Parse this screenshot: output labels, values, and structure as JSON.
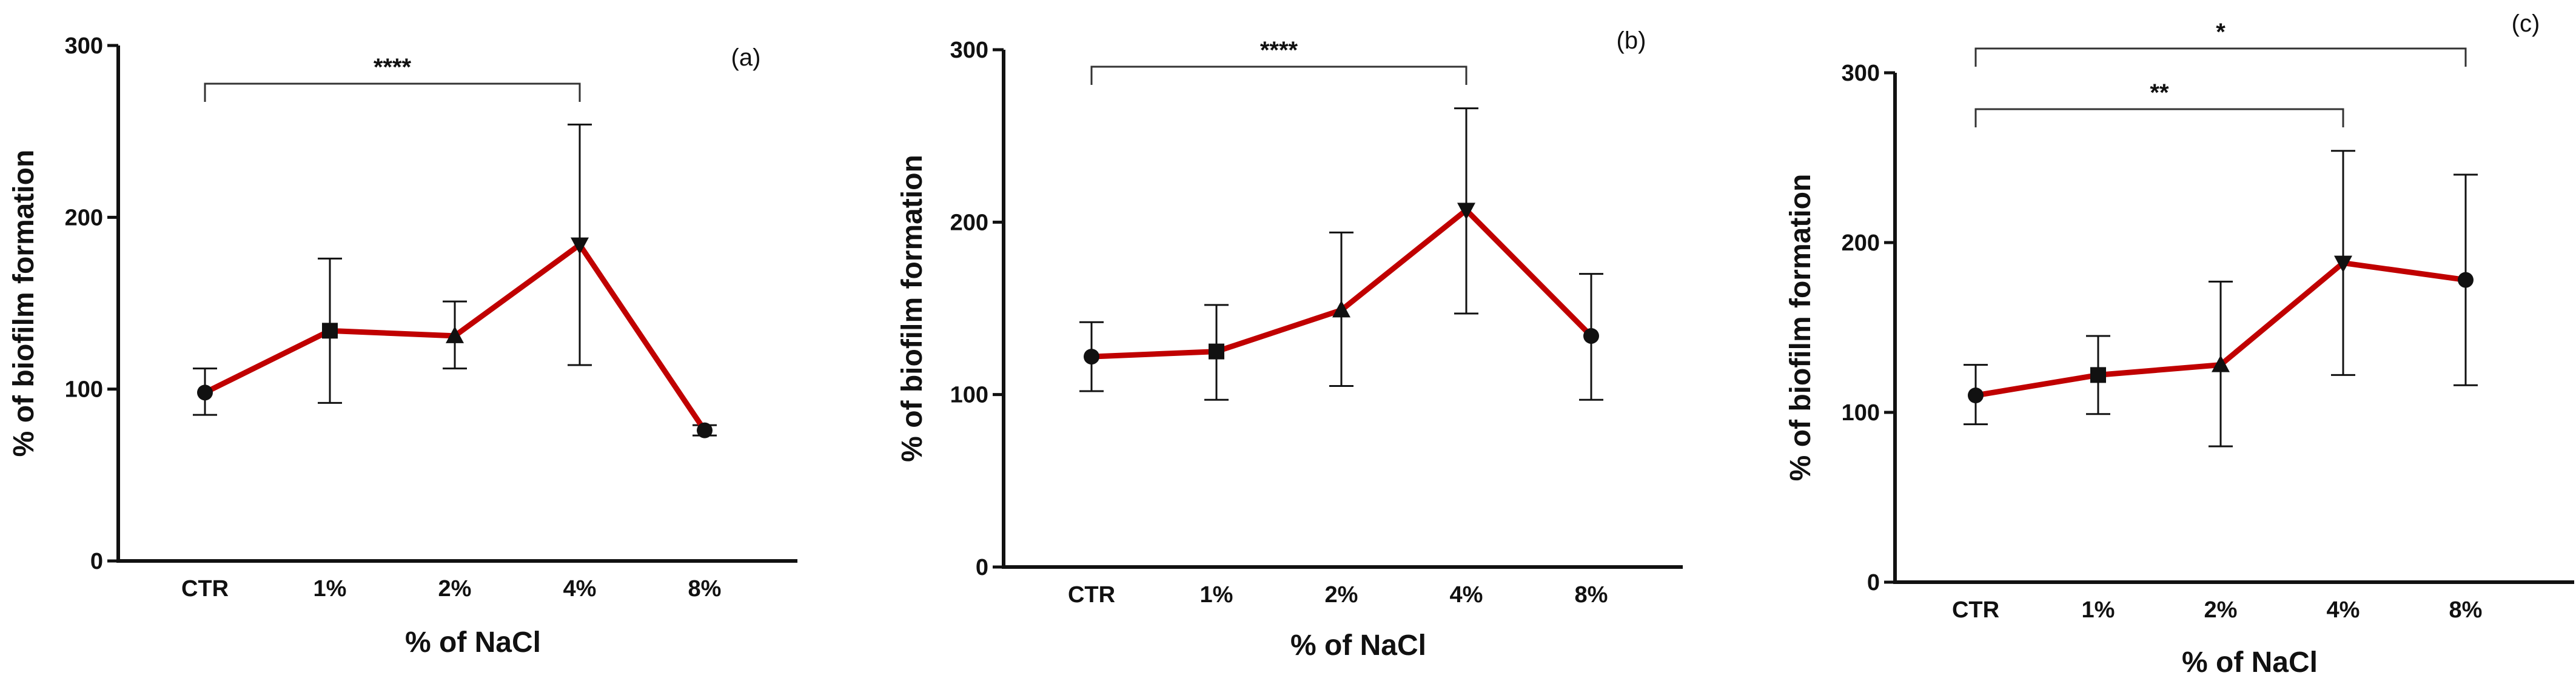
{
  "figure": {
    "colors": {
      "line": "#c00000",
      "axis": "#111111",
      "marker": "#111111",
      "bracket": "#333333"
    }
  },
  "chart_data": [
    {
      "type": "line",
      "panel_label": "(a)",
      "categories": [
        "CTR",
        "1%",
        "2%",
        "4%",
        "8%"
      ],
      "markers": [
        "circle",
        "square",
        "triangle-up",
        "triangle-down",
        "circle"
      ],
      "values": [
        98,
        134,
        131,
        184,
        76
      ],
      "error_upper": [
        112,
        176,
        151,
        254,
        79
      ],
      "error_lower": [
        85,
        92,
        112,
        114,
        73
      ],
      "xlabel": "% of NaCl",
      "ylabel": "% of biofilm formation",
      "ylim": [
        0,
        300
      ],
      "yticks": [
        0,
        100,
        200,
        300
      ],
      "significance": [
        {
          "from": "CTR",
          "to": "4%",
          "label": "****"
        }
      ]
    },
    {
      "type": "line",
      "panel_label": "(b)",
      "categories": [
        "CTR",
        "1%",
        "2%",
        "4%",
        "8%"
      ],
      "markers": [
        "circle",
        "square",
        "triangle-up",
        "triangle-down",
        "circle"
      ],
      "values": [
        122,
        125,
        149,
        207,
        134
      ],
      "error_upper": [
        142,
        152,
        194,
        266,
        170
      ],
      "error_lower": [
        102,
        97,
        105,
        147,
        97
      ],
      "xlabel": "% of NaCl",
      "ylabel": "% of biofilm formation",
      "ylim": [
        0,
        300
      ],
      "yticks": [
        0,
        100,
        200,
        300
      ],
      "significance": [
        {
          "from": "CTR",
          "to": "4%",
          "label": "****"
        }
      ]
    },
    {
      "type": "line",
      "panel_label": "(c)",
      "categories": [
        "CTR",
        "1%",
        "2%",
        "4%",
        "8%"
      ],
      "markers": [
        "circle",
        "square",
        "triangle-up",
        "triangle-down",
        "circle"
      ],
      "values": [
        110,
        122,
        128,
        188,
        178
      ],
      "error_upper": [
        128,
        145,
        177,
        254,
        240
      ],
      "error_lower": [
        93,
        99,
        80,
        122,
        116
      ],
      "xlabel": "% of NaCl",
      "ylabel": "% of biofilm formation",
      "ylim": [
        0,
        300
      ],
      "yticks": [
        0,
        100,
        200,
        300
      ],
      "significance": [
        {
          "from": "CTR",
          "to": "8%",
          "label": "*"
        },
        {
          "from": "CTR",
          "to": "4%",
          "label": "**"
        }
      ]
    }
  ]
}
